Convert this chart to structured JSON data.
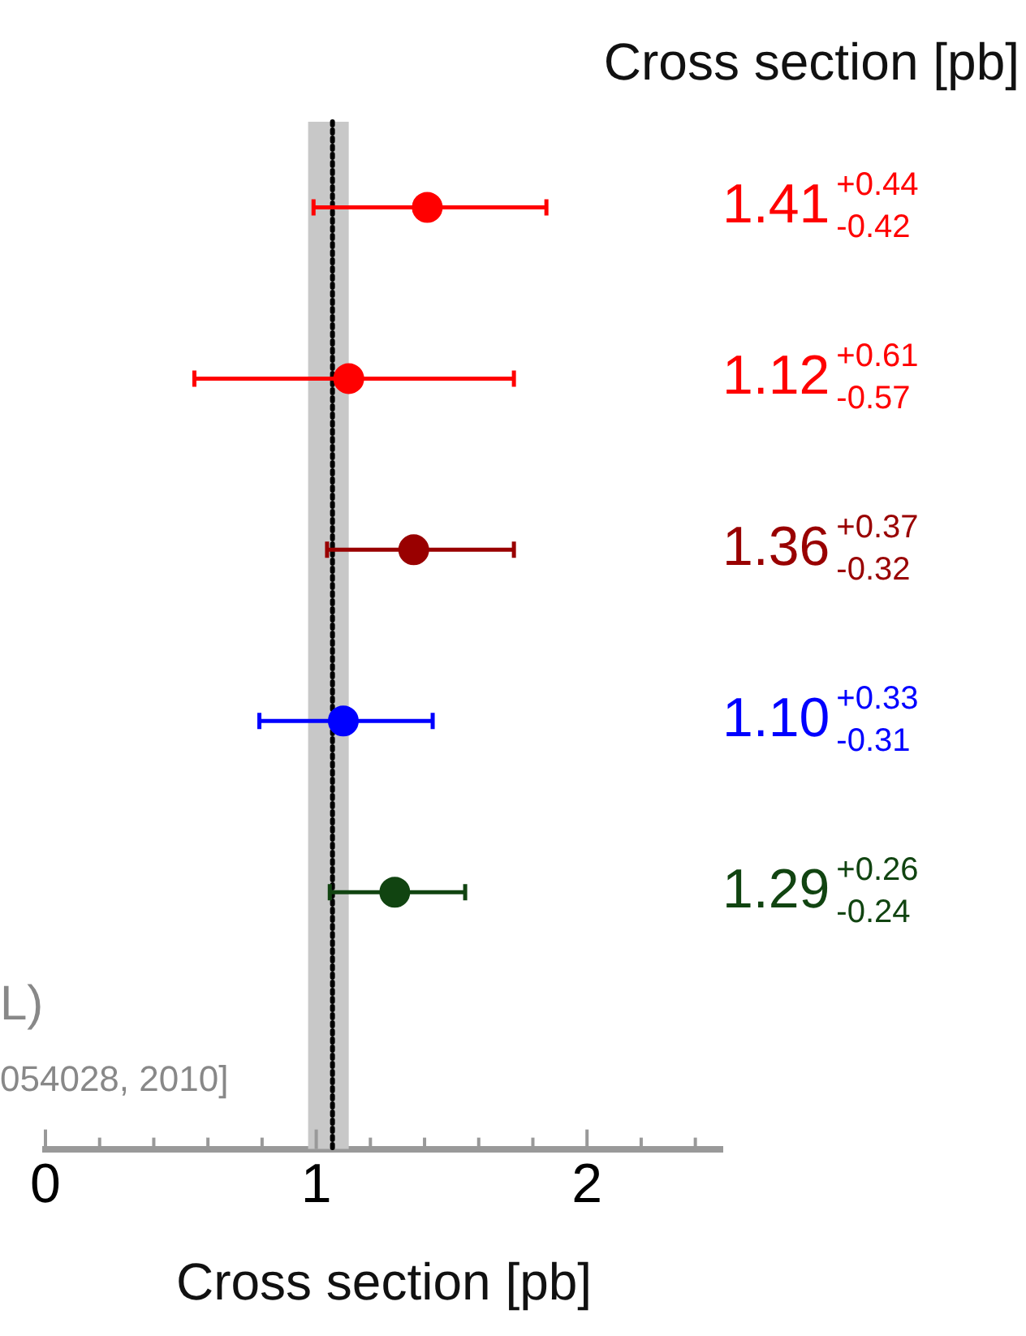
{
  "chart_data": {
    "type": "scatter",
    "orientation": "horizontal",
    "xlabel": "Cross section [pb]",
    "categories": [
      null,
      null,
      null,
      null,
      null,
      null
    ],
    "values": [
      1.41,
      1.12,
      1.36,
      1.1,
      1.29,
      null
    ],
    "colors": [
      "#ff0000",
      "#ff0000",
      "#990000",
      "#0000ff",
      "#114411",
      null
    ],
    "errors": [
      [
        0.99,
        1.85
      ],
      [
        0.55,
        1.73
      ],
      [
        1.04,
        1.73
      ],
      [
        0.79,
        1.43
      ],
      [
        1.05,
        1.55
      ],
      null
    ],
    "value_labels": [
      "1.41$^{+0.44}$$_{-0.42}$",
      "1.12$^{+0.61}$$_{-0.57}$",
      "1.36$^{+0.37}$$_{-0.32}$",
      "1.10$^{+0.33}$$_{-0.31}$",
      "1.29$^{+0.26}$$_{-0.24}$",
      null
    ],
    "xlim": [
      0,
      2.5
    ],
    "xticks": [
      0,
      {
        "value": 0.2,
        "label": null
      },
      {
        "value": 0.4,
        "label": null
      },
      {
        "value": 0.6,
        "label": null
      },
      {
        "value": 0.8,
        "label": null
      },
      1,
      {
        "value": 1.2,
        "label": null
      },
      {
        "value": 1.4,
        "label": null
      },
      {
        "value": 1.6,
        "label": null
      },
      {
        "value": 1.8,
        "label": null
      },
      2,
      {
        "value": 2.2,
        "label": null
      },
      {
        "value": 2.4,
        "label": null
      }
    ],
    "ref_lines": [
      {
        "axis": "x",
        "value": 1.06,
        "line_style": "dotted",
        "color": "#000000"
      }
    ],
    "bands": [
      {
        "axis": "x",
        "from": 0.97,
        "to": 1.12,
        "color": "#c8c8c8"
      }
    ],
    "annotations": [
      "Cross section [pb]",
      "L)",
      "054028, 2010]"
    ],
    "marker": "circle",
    "grid": false,
    "legend": false,
    "tick_labels": "x"
  }
}
